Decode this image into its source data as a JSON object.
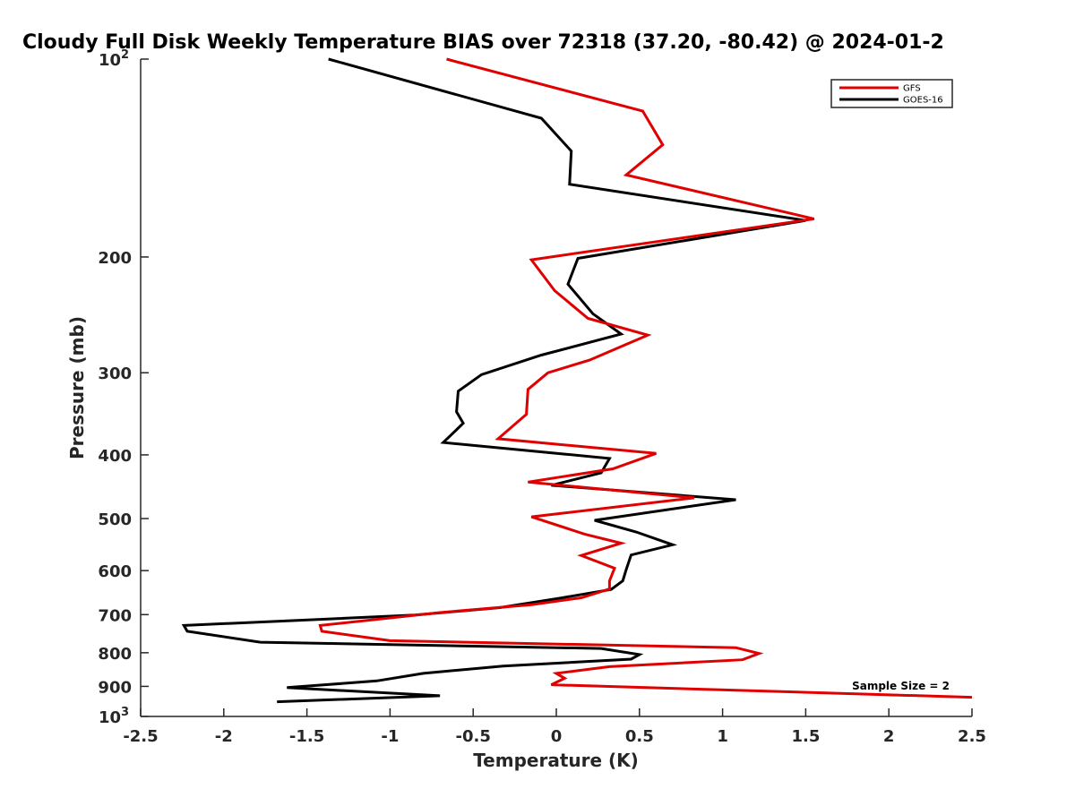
{
  "chart_data": {
    "type": "line",
    "title": "Cloudy Full Disk Weekly Temperature BIAS over 72318 (37.20, -80.42) @ 2024-01-2",
    "xlabel": "Temperature (K)",
    "ylabel": "Pressure (mb)",
    "xlim": [
      -2.5,
      2.5
    ],
    "ylim": [
      100,
      1000
    ],
    "yscale": "log",
    "y_reversed": true,
    "xticks": [
      "-2.5",
      "-2",
      "-1.5",
      "-1",
      "-0.5",
      "0",
      "0.5",
      "1",
      "1.5",
      "2",
      "2.5"
    ],
    "yticks": [
      {
        "value": 100,
        "label": "10",
        "sup": "2"
      },
      {
        "value": 200,
        "label": "200"
      },
      {
        "value": 300,
        "label": "300"
      },
      {
        "value": 400,
        "label": "400"
      },
      {
        "value": 500,
        "label": "500"
      },
      {
        "value": 600,
        "label": "600"
      },
      {
        "value": 700,
        "label": "700"
      },
      {
        "value": 800,
        "label": "800"
      },
      {
        "value": 900,
        "label": "900"
      },
      {
        "value": 1000,
        "label": "10",
        "sup": "3"
      }
    ],
    "grid": false,
    "legend_position": "top-right",
    "annotation": "Sample Size = 2",
    "series": [
      {
        "name": "GFS",
        "color": "#e00000",
        "points": [
          [
            -0.66,
            100
          ],
          [
            0.52,
            120
          ],
          [
            0.64,
            135
          ],
          [
            0.42,
            150
          ],
          [
            1.55,
            175
          ],
          [
            -0.15,
            202
          ],
          [
            -0.01,
            225
          ],
          [
            0.19,
            248
          ],
          [
            0.55,
            263
          ],
          [
            0.2,
            287
          ],
          [
            -0.05,
            300
          ],
          [
            -0.17,
            318
          ],
          [
            -0.18,
            347
          ],
          [
            -0.35,
            378
          ],
          [
            0.6,
            398
          ],
          [
            0.34,
            420
          ],
          [
            -0.17,
            440
          ],
          [
            0.83,
            465
          ],
          [
            -0.15,
            497
          ],
          [
            0.17,
            528
          ],
          [
            0.39,
            545
          ],
          [
            0.15,
            569
          ],
          [
            0.35,
            595
          ],
          [
            0.32,
            622
          ],
          [
            0.32,
            640
          ],
          [
            0.15,
            660
          ],
          [
            -0.15,
            676
          ],
          [
            -0.7,
            695
          ],
          [
            -1.42,
            727
          ],
          [
            -1.41,
            742
          ],
          [
            -1.0,
            767
          ],
          [
            1.08,
            786
          ],
          [
            1.22,
            802
          ],
          [
            1.12,
            820
          ],
          [
            0.32,
            840
          ],
          [
            0.0,
            860
          ],
          [
            0.05,
            875
          ],
          [
            -0.03,
            895
          ],
          [
            2.5,
            935
          ]
        ]
      },
      {
        "name": "GOES-16",
        "color": "#000000",
        "points": [
          [
            -1.37,
            100
          ],
          [
            -0.09,
            123
          ],
          [
            0.09,
            138
          ],
          [
            0.08,
            155
          ],
          [
            1.5,
            176
          ],
          [
            0.13,
            201
          ],
          [
            0.07,
            220
          ],
          [
            0.22,
            244
          ],
          [
            0.39,
            262
          ],
          [
            -0.09,
            282
          ],
          [
            -0.45,
            302
          ],
          [
            -0.59,
            320
          ],
          [
            -0.6,
            344
          ],
          [
            -0.56,
            358
          ],
          [
            -0.68,
            383
          ],
          [
            0.32,
            405
          ],
          [
            0.27,
            426
          ],
          [
            -0.03,
            445
          ],
          [
            1.08,
            468
          ],
          [
            0.23,
            503
          ],
          [
            0.48,
            524
          ],
          [
            0.7,
            548
          ],
          [
            0.45,
            568
          ],
          [
            0.42,
            598
          ],
          [
            0.4,
            622
          ],
          [
            0.33,
            641
          ],
          [
            0.02,
            661
          ],
          [
            -0.34,
            683
          ],
          [
            -0.85,
            701
          ],
          [
            -2.24,
            727
          ],
          [
            -2.22,
            742
          ],
          [
            -1.78,
            771
          ],
          [
            0.27,
            788
          ],
          [
            0.5,
            805
          ],
          [
            0.45,
            818
          ],
          [
            -0.32,
            838
          ],
          [
            -0.8,
            860
          ],
          [
            -1.08,
            883
          ],
          [
            -1.62,
            904
          ],
          [
            -0.7,
            930
          ],
          [
            -1.68,
            950
          ]
        ]
      }
    ]
  }
}
